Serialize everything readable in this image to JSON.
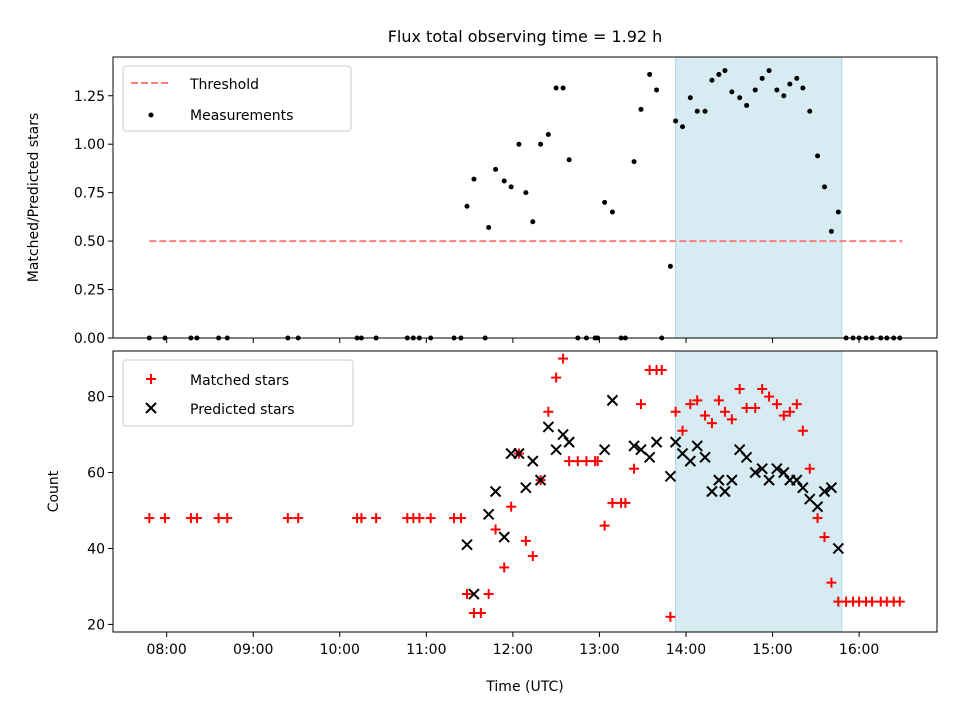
{
  "title": "Flux total observing time = 1.92 h",
  "colors": {
    "threshold": "#ff7f7f",
    "measurement": "#000000",
    "matched": "#ff0000",
    "predicted": "#000000",
    "highlight": "#add8e6"
  },
  "chart_data": [
    {
      "type": "scatter",
      "ylabel": "Matched/Predicted stars",
      "ylim": [
        0,
        1.45
      ],
      "yticks": [
        0,
        0.25,
        0.5,
        0.75,
        1.0,
        1.25
      ],
      "yticklabels": [
        "0.00",
        "0.25",
        "0.50",
        "0.75",
        "1.00",
        "1.25"
      ],
      "xlim": [
        7.38,
        16.9
      ],
      "grid": false,
      "legend_position": "top-left",
      "highlight_span": [
        13.88,
        15.8
      ],
      "threshold": {
        "name": "Threshold",
        "value": 0.5,
        "x_range": [
          7.8,
          16.5
        ]
      },
      "series": [
        {
          "name": "Measurements",
          "points": [
            [
              7.8,
              0
            ],
            [
              7.98,
              0
            ],
            [
              8.28,
              0
            ],
            [
              8.35,
              0
            ],
            [
              8.6,
              0
            ],
            [
              8.7,
              0
            ],
            [
              9.4,
              0
            ],
            [
              9.52,
              0
            ],
            [
              10.2,
              0
            ],
            [
              10.25,
              0
            ],
            [
              10.42,
              0
            ],
            [
              10.78,
              0
            ],
            [
              10.85,
              0
            ],
            [
              10.92,
              0
            ],
            [
              11.05,
              0
            ],
            [
              11.32,
              0
            ],
            [
              11.4,
              0
            ],
            [
              11.68,
              0
            ],
            [
              11.47,
              0.68
            ],
            [
              11.55,
              0.82
            ],
            [
              11.72,
              0.57
            ],
            [
              11.8,
              0.87
            ],
            [
              11.9,
              0.81
            ],
            [
              11.98,
              0.78
            ],
            [
              12.07,
              1.0
            ],
            [
              12.15,
              0.75
            ],
            [
              12.23,
              0.6
            ],
            [
              12.32,
              1.0
            ],
            [
              12.41,
              1.05
            ],
            [
              12.5,
              1.29
            ],
            [
              12.58,
              1.29
            ],
            [
              12.65,
              0.92
            ],
            [
              12.75,
              0
            ],
            [
              12.85,
              0
            ],
            [
              12.95,
              0
            ],
            [
              12.98,
              0
            ],
            [
              13.25,
              0
            ],
            [
              13.3,
              0
            ],
            [
              13.72,
              0
            ],
            [
              13.06,
              0.7
            ],
            [
              13.15,
              0.65
            ],
            [
              13.4,
              0.91
            ],
            [
              13.48,
              1.18
            ],
            [
              13.58,
              1.36
            ],
            [
              13.66,
              1.28
            ],
            [
              13.82,
              0.37
            ],
            [
              13.88,
              1.12
            ],
            [
              13.96,
              1.09
            ],
            [
              14.05,
              1.24
            ],
            [
              14.13,
              1.17
            ],
            [
              14.22,
              1.17
            ],
            [
              14.3,
              1.33
            ],
            [
              14.38,
              1.36
            ],
            [
              14.45,
              1.38
            ],
            [
              14.53,
              1.27
            ],
            [
              14.62,
              1.24
            ],
            [
              14.7,
              1.2
            ],
            [
              14.8,
              1.28
            ],
            [
              14.88,
              1.34
            ],
            [
              14.96,
              1.38
            ],
            [
              15.05,
              1.28
            ],
            [
              15.13,
              1.25
            ],
            [
              15.2,
              1.31
            ],
            [
              15.28,
              1.34
            ],
            [
              15.35,
              1.29
            ],
            [
              15.43,
              1.17
            ],
            [
              15.52,
              0.94
            ],
            [
              15.6,
              0.78
            ],
            [
              15.68,
              0.55
            ],
            [
              15.76,
              0.65
            ],
            [
              15.85,
              0
            ],
            [
              15.93,
              0
            ],
            [
              16.0,
              0
            ],
            [
              16.08,
              0
            ],
            [
              16.15,
              0
            ],
            [
              16.25,
              0
            ],
            [
              16.32,
              0
            ],
            [
              16.4,
              0
            ],
            [
              16.47,
              0
            ]
          ]
        }
      ]
    },
    {
      "type": "scatter",
      "xlabel": "Time (UTC)",
      "ylabel": "Count",
      "ylim": [
        18,
        92
      ],
      "yticks": [
        20,
        40,
        60,
        80
      ],
      "yticklabels": [
        "20",
        "40",
        "60",
        "80"
      ],
      "xlim": [
        7.38,
        16.9
      ],
      "xticks": [
        8,
        9,
        10,
        11,
        12,
        13,
        14,
        15,
        16
      ],
      "xticklabels": [
        "08:00",
        "09:00",
        "10:00",
        "11:00",
        "12:00",
        "13:00",
        "14:00",
        "15:00",
        "16:00"
      ],
      "grid": false,
      "legend_position": "top-left",
      "highlight_span": [
        13.88,
        15.8
      ],
      "series": [
        {
          "name": "Matched stars",
          "marker": "plus",
          "points": [
            [
              7.8,
              48
            ],
            [
              7.98,
              48
            ],
            [
              8.28,
              48
            ],
            [
              8.35,
              48
            ],
            [
              8.6,
              48
            ],
            [
              8.7,
              48
            ],
            [
              9.4,
              48
            ],
            [
              9.52,
              48
            ],
            [
              10.2,
              48
            ],
            [
              10.25,
              48
            ],
            [
              10.42,
              48
            ],
            [
              10.78,
              48
            ],
            [
              10.85,
              48
            ],
            [
              10.92,
              48
            ],
            [
              11.05,
              48
            ],
            [
              11.32,
              48
            ],
            [
              11.4,
              48
            ],
            [
              11.47,
              28
            ],
            [
              11.55,
              23
            ],
            [
              11.63,
              23
            ],
            [
              11.72,
              28
            ],
            [
              11.8,
              45
            ],
            [
              11.9,
              35
            ],
            [
              11.98,
              51
            ],
            [
              12.07,
              65
            ],
            [
              12.15,
              42
            ],
            [
              12.23,
              38
            ],
            [
              12.32,
              58
            ],
            [
              12.41,
              76
            ],
            [
              12.5,
              85
            ],
            [
              12.58,
              90
            ],
            [
              12.65,
              63
            ],
            [
              12.75,
              63
            ],
            [
              12.85,
              63
            ],
            [
              12.95,
              63
            ],
            [
              12.98,
              63
            ],
            [
              13.06,
              46
            ],
            [
              13.15,
              52
            ],
            [
              13.25,
              52
            ],
            [
              13.3,
              52
            ],
            [
              13.4,
              61
            ],
            [
              13.48,
              78
            ],
            [
              13.58,
              87
            ],
            [
              13.66,
              87
            ],
            [
              13.72,
              87
            ],
            [
              13.82,
              22
            ],
            [
              13.88,
              76
            ],
            [
              13.96,
              71
            ],
            [
              14.05,
              78
            ],
            [
              14.13,
              79
            ],
            [
              14.22,
              75
            ],
            [
              14.3,
              73
            ],
            [
              14.38,
              79
            ],
            [
              14.45,
              76
            ],
            [
              14.53,
              74
            ],
            [
              14.62,
              82
            ],
            [
              14.7,
              77
            ],
            [
              14.8,
              77
            ],
            [
              14.88,
              82
            ],
            [
              14.96,
              80
            ],
            [
              15.05,
              78
            ],
            [
              15.13,
              75
            ],
            [
              15.2,
              76
            ],
            [
              15.28,
              78
            ],
            [
              15.35,
              71
            ],
            [
              15.43,
              61
            ],
            [
              15.52,
              48
            ],
            [
              15.6,
              43
            ],
            [
              15.68,
              31
            ],
            [
              15.76,
              26
            ],
            [
              15.85,
              26
            ],
            [
              15.93,
              26
            ],
            [
              16.0,
              26
            ],
            [
              16.08,
              26
            ],
            [
              16.15,
              26
            ],
            [
              16.25,
              26
            ],
            [
              16.32,
              26
            ],
            [
              16.4,
              26
            ],
            [
              16.47,
              26
            ]
          ]
        },
        {
          "name": "Predicted stars",
          "marker": "x",
          "points": [
            [
              11.47,
              41
            ],
            [
              11.55,
              28
            ],
            [
              11.72,
              49
            ],
            [
              11.8,
              55
            ],
            [
              11.9,
              43
            ],
            [
              11.98,
              65
            ],
            [
              12.07,
              65
            ],
            [
              12.15,
              56
            ],
            [
              12.23,
              63
            ],
            [
              12.32,
              58
            ],
            [
              12.41,
              72
            ],
            [
              12.5,
              66
            ],
            [
              12.58,
              70
            ],
            [
              12.65,
              68
            ],
            [
              13.06,
              66
            ],
            [
              13.15,
              79
            ],
            [
              13.4,
              67
            ],
            [
              13.48,
              66
            ],
            [
              13.58,
              64
            ],
            [
              13.66,
              68
            ],
            [
              13.82,
              59
            ],
            [
              13.88,
              68
            ],
            [
              13.96,
              65
            ],
            [
              14.05,
              63
            ],
            [
              14.13,
              67
            ],
            [
              14.22,
              64
            ],
            [
              14.3,
              55
            ],
            [
              14.38,
              58
            ],
            [
              14.45,
              55
            ],
            [
              14.53,
              58
            ],
            [
              14.62,
              66
            ],
            [
              14.7,
              64
            ],
            [
              14.8,
              60
            ],
            [
              14.88,
              61
            ],
            [
              14.96,
              58
            ],
            [
              15.05,
              61
            ],
            [
              15.13,
              60
            ],
            [
              15.2,
              58
            ],
            [
              15.28,
              58
            ],
            [
              15.35,
              56
            ],
            [
              15.43,
              53
            ],
            [
              15.52,
              51
            ],
            [
              15.6,
              55
            ],
            [
              15.68,
              56
            ],
            [
              15.76,
              40
            ]
          ]
        }
      ]
    }
  ]
}
